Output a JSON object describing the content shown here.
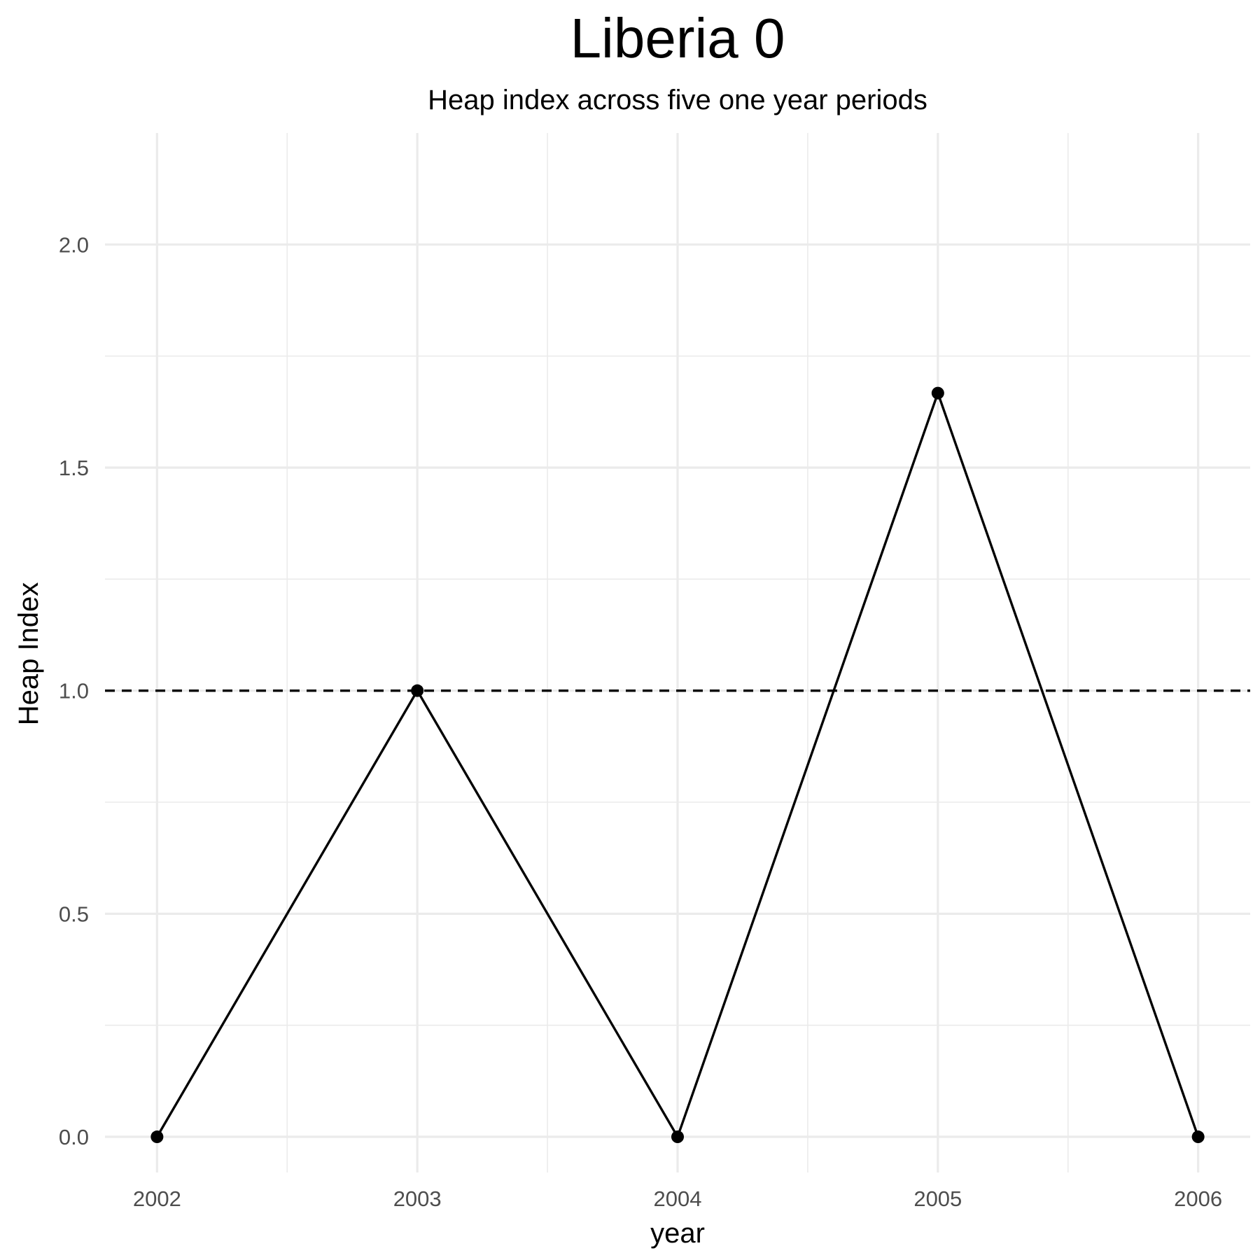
{
  "chart_data": {
    "type": "line",
    "title": "Liberia 0",
    "subtitle": "Heap index across five one year periods",
    "xlabel": "year",
    "ylabel": "Heap Index",
    "x": [
      2002,
      2003,
      2004,
      2005,
      2006
    ],
    "series": [
      {
        "values": [
          0.0,
          1.0,
          0.0,
          1.667,
          0.0
        ]
      }
    ],
    "reference_line": {
      "y": 1.0,
      "style": "dashed"
    },
    "xlim": [
      2001.8,
      2006.2
    ],
    "ylim": [
      -0.08,
      2.25
    ],
    "x_ticks": [
      "2002",
      "2003",
      "2004",
      "2005",
      "2006"
    ],
    "y_ticks": [
      "0.0",
      "0.5",
      "1.0",
      "1.5",
      "2.0"
    ],
    "grid": true,
    "legend": "none",
    "colors": {
      "line": "#000000",
      "grid": "#ebebeb",
      "tick_text": "#4d4d4d",
      "background": "#ffffff"
    }
  }
}
